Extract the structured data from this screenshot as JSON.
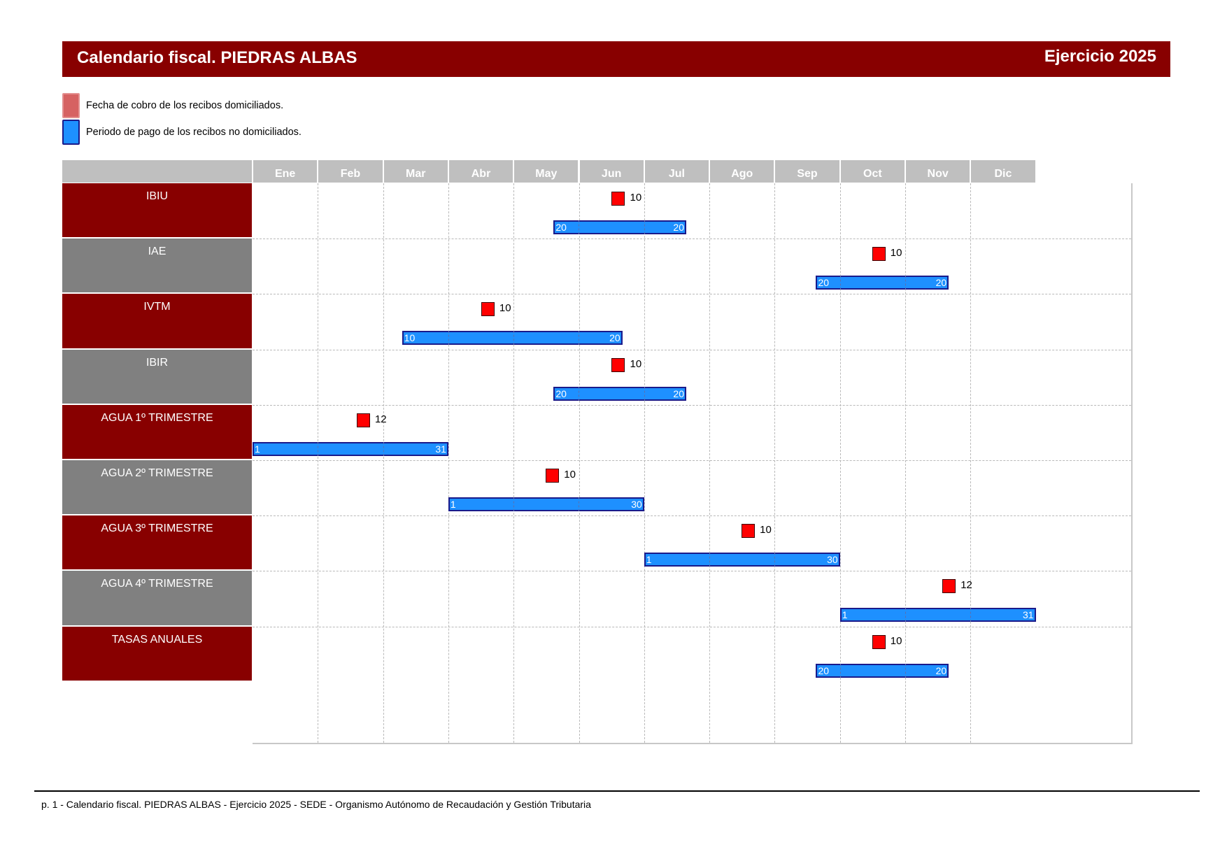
{
  "header": {
    "title": "Calendario fiscal. PIEDRAS ALBAS",
    "year_label": "Ejercicio 2025"
  },
  "legend": {
    "domiciled": "Fecha de cobro de los recibos domiciliados.",
    "non_domiciled": "Periodo de pago de los recibos no domiciliados."
  },
  "months": [
    "Ene",
    "Feb",
    "Mar",
    "Abr",
    "May",
    "Jun",
    "Jul",
    "Ago",
    "Sep",
    "Oct",
    "Nov",
    "Dic"
  ],
  "rows": [
    {
      "label": "IBIU",
      "style": "dark",
      "charge": {
        "month": 6,
        "day": 10,
        "label": "10"
      },
      "period": {
        "start_month": 5,
        "start_day": 20,
        "end_month": 7,
        "end_day": 20,
        "start_label": "20",
        "end_label": "20"
      }
    },
    {
      "label": "IAE",
      "style": "grey",
      "charge": {
        "month": 10,
        "day": 10,
        "label": "10"
      },
      "period": {
        "start_month": 9,
        "start_day": 20,
        "end_month": 11,
        "end_day": 20,
        "start_label": "20",
        "end_label": "20"
      }
    },
    {
      "label": "IVTM",
      "style": "dark",
      "charge": {
        "month": 4,
        "day": 10,
        "label": "10"
      },
      "period": {
        "start_month": 3,
        "start_day": 10,
        "end_month": 6,
        "end_day": 20,
        "start_label": "10",
        "end_label": "20"
      }
    },
    {
      "label": "IBIR",
      "style": "grey",
      "charge": {
        "month": 6,
        "day": 10,
        "label": "10"
      },
      "period": {
        "start_month": 5,
        "start_day": 20,
        "end_month": 7,
        "end_day": 20,
        "start_label": "20",
        "end_label": "20"
      }
    },
    {
      "label": "AGUA 1º TRIMESTRE",
      "style": "dark",
      "charge": {
        "month": 2,
        "day": 12,
        "label": "12"
      },
      "period": {
        "start_month": 1,
        "start_day": 1,
        "end_month": 3,
        "end_day": 31,
        "start_label": "1",
        "end_label": "31"
      }
    },
    {
      "label": "AGUA 2º TRIMESTRE",
      "style": "grey",
      "charge": {
        "month": 5,
        "day": 10,
        "label": "10"
      },
      "period": {
        "start_month": 4,
        "start_day": 1,
        "end_month": 6,
        "end_day": 30,
        "start_label": "1",
        "end_label": "30"
      }
    },
    {
      "label": "AGUA 3º TRIMESTRE",
      "style": "dark",
      "charge": {
        "month": 8,
        "day": 10,
        "label": "10"
      },
      "period": {
        "start_month": 7,
        "start_day": 1,
        "end_month": 9,
        "end_day": 30,
        "start_label": "1",
        "end_label": "30"
      }
    },
    {
      "label": "AGUA 4º TRIMESTRE",
      "style": "grey",
      "charge": {
        "month": 11,
        "day": 12,
        "label": "12"
      },
      "period": {
        "start_month": 10,
        "start_day": 1,
        "end_month": 12,
        "end_day": 31,
        "start_label": "1",
        "end_label": "31"
      }
    },
    {
      "label": "TASAS ANUALES",
      "style": "dark",
      "charge": {
        "month": 10,
        "day": 10,
        "label": "10"
      },
      "period": {
        "start_month": 9,
        "start_day": 20,
        "end_month": 11,
        "end_day": 20,
        "start_label": "20",
        "end_label": "20"
      }
    }
  ],
  "footer": {
    "text": "p. 1 - Calendario fiscal. PIEDRAS ALBAS - Ejercicio 2025 - SEDE - Organismo Autónomo de Recaudación y Gestión Tributaria"
  },
  "colors": {
    "brand_dark_red": "#880000",
    "row_grey": "#808080",
    "header_grey": "#bfbfbf",
    "charge_marker": "#ff0000",
    "period_bar": "#1e90ff",
    "period_border": "#1a1a8a"
  }
}
